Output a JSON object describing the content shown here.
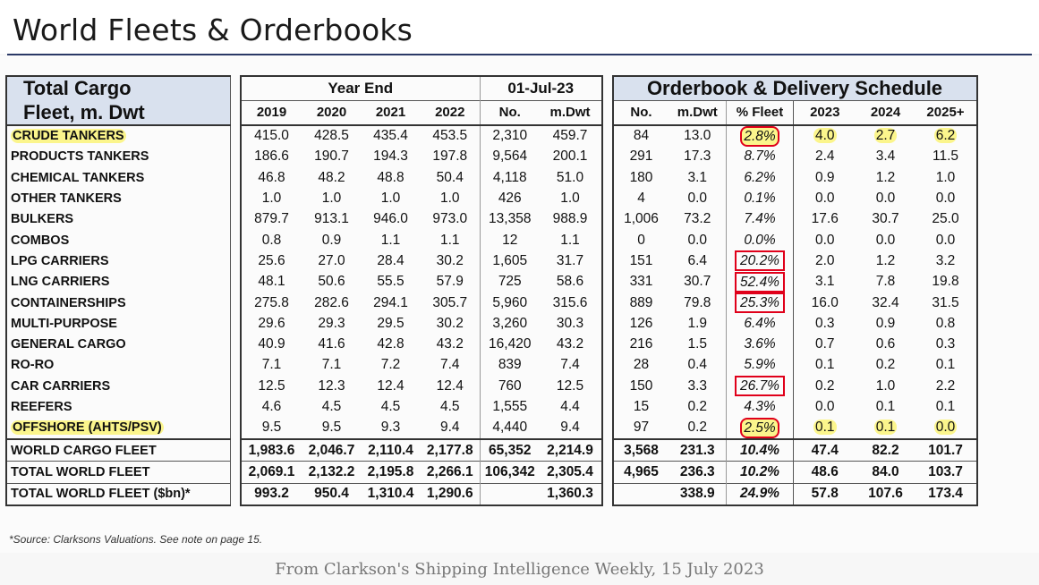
{
  "title": "World Fleets & Orderbooks",
  "header": {
    "label_line1": "Total Cargo",
    "label_line2": "Fleet, m. Dwt",
    "year_end": "Year End",
    "date": "01-Jul-23",
    "orderbook": "Orderbook & Delivery Schedule",
    "cols": [
      "2019",
      "2020",
      "2021",
      "2022",
      "No.",
      "m.Dwt",
      "No.",
      "m.Dwt",
      "% Fleet",
      "2023",
      "2024",
      "2025+"
    ]
  },
  "rows": [
    {
      "label": "CRUDE TANKERS",
      "v": [
        "415.0",
        "428.5",
        "435.4",
        "453.5",
        "2,310",
        "459.7",
        "84",
        "13.0",
        "2.8%",
        "4.0",
        "2.7",
        "6.2"
      ]
    },
    {
      "label": "PRODUCTS TANKERS",
      "v": [
        "186.6",
        "190.7",
        "194.3",
        "197.8",
        "9,564",
        "200.1",
        "291",
        "17.3",
        "8.7%",
        "2.4",
        "3.4",
        "11.5"
      ]
    },
    {
      "label": "CHEMICAL TANKERS",
      "v": [
        "46.8",
        "48.2",
        "48.8",
        "50.4",
        "4,118",
        "51.0",
        "180",
        "3.1",
        "6.2%",
        "0.9",
        "1.2",
        "1.0"
      ]
    },
    {
      "label": "OTHER TANKERS",
      "v": [
        "1.0",
        "1.0",
        "1.0",
        "1.0",
        "426",
        "1.0",
        "4",
        "0.0",
        "0.1%",
        "0.0",
        "0.0",
        "0.0"
      ]
    },
    {
      "label": "BULKERS",
      "v": [
        "879.7",
        "913.1",
        "946.0",
        "973.0",
        "13,358",
        "988.9",
        "1,006",
        "73.2",
        "7.4%",
        "17.6",
        "30.7",
        "25.0"
      ]
    },
    {
      "label": "COMBOS",
      "v": [
        "0.8",
        "0.9",
        "1.1",
        "1.1",
        "12",
        "1.1",
        "0",
        "0.0",
        "0.0%",
        "0.0",
        "0.0",
        "0.0"
      ]
    },
    {
      "label": "LPG CARRIERS",
      "v": [
        "25.6",
        "27.0",
        "28.4",
        "30.2",
        "1,605",
        "31.7",
        "151",
        "6.4",
        "20.2%",
        "2.0",
        "1.2",
        "3.2"
      ]
    },
    {
      "label": "LNG CARRIERS",
      "v": [
        "48.1",
        "50.6",
        "55.5",
        "57.9",
        "725",
        "58.6",
        "331",
        "30.7",
        "52.4%",
        "3.1",
        "7.8",
        "19.8"
      ]
    },
    {
      "label": "CONTAINERSHIPS",
      "v": [
        "275.8",
        "282.6",
        "294.1",
        "305.7",
        "5,960",
        "315.6",
        "889",
        "79.8",
        "25.3%",
        "16.0",
        "32.4",
        "31.5"
      ]
    },
    {
      "label": "MULTI-PURPOSE",
      "v": [
        "29.6",
        "29.3",
        "29.5",
        "30.2",
        "3,260",
        "30.3",
        "126",
        "1.9",
        "6.4%",
        "0.3",
        "0.9",
        "0.8"
      ]
    },
    {
      "label": "GENERAL CARGO",
      "v": [
        "40.9",
        "41.6",
        "42.8",
        "43.2",
        "16,420",
        "43.2",
        "216",
        "1.5",
        "3.6%",
        "0.7",
        "0.6",
        "0.3"
      ]
    },
    {
      "label": "RO-RO",
      "v": [
        "7.1",
        "7.1",
        "7.2",
        "7.4",
        "839",
        "7.4",
        "28",
        "0.4",
        "5.9%",
        "0.1",
        "0.2",
        "0.1"
      ]
    },
    {
      "label": "CAR CARRIERS",
      "v": [
        "12.5",
        "12.3",
        "12.4",
        "12.4",
        "760",
        "12.5",
        "150",
        "3.3",
        "26.7%",
        "0.2",
        "1.0",
        "2.2"
      ]
    },
    {
      "label": "REEFERS",
      "v": [
        "4.6",
        "4.5",
        "4.5",
        "4.5",
        "1,555",
        "4.4",
        "15",
        "0.2",
        "4.3%",
        "0.0",
        "0.1",
        "0.1"
      ]
    },
    {
      "label": "OFFSHORE (AHTS/PSV)",
      "v": [
        "9.5",
        "9.5",
        "9.3",
        "9.4",
        "4,440",
        "9.4",
        "97",
        "0.2",
        "2.5%",
        "0.1",
        "0.1",
        "0.0"
      ]
    }
  ],
  "totals": [
    {
      "label": "WORLD CARGO FLEET",
      "v": [
        "1,983.6",
        "2,046.7",
        "2,110.4",
        "2,177.8",
        "65,352",
        "2,214.9",
        "3,568",
        "231.3",
        "10.4%",
        "47.4",
        "82.2",
        "101.7"
      ]
    },
    {
      "label": "TOTAL WORLD FLEET",
      "v": [
        "2,069.1",
        "2,132.2",
        "2,195.8",
        "2,266.1",
        "106,342",
        "2,305.4",
        "4,965",
        "236.3",
        "10.2%",
        "48.6",
        "84.0",
        "103.7"
      ]
    },
    {
      "label": "TOTAL WORLD FLEET ($bn)*",
      "v": [
        "993.2",
        "950.4",
        "1,310.4",
        "1,290.6",
        "",
        "1,360.3",
        "",
        "338.9",
        "24.9%",
        "57.8",
        "107.6",
        "173.4"
      ]
    }
  ],
  "boxed_pct_rows": [
    "CRUDE TANKERS",
    "LPG CARRIERS",
    "LNG CARRIERS",
    "CONTAINERSHIPS",
    "CAR CARRIERS",
    "OFFSHORE (AHTS/PSV)"
  ],
  "highlighted_rows": [
    "CRUDE TANKERS",
    "OFFSHORE (AHTS/PSV)"
  ],
  "colors": {
    "header_fill": "#d9e1ee",
    "box": "#e0001a",
    "highlight": "#fbf58c",
    "rule": "#2b3a67"
  },
  "source": "*Source: Clarksons Valuations. See note on page 15.",
  "credit": "From Clarkson's Shipping Intelligence Weekly, 15 July 2023"
}
